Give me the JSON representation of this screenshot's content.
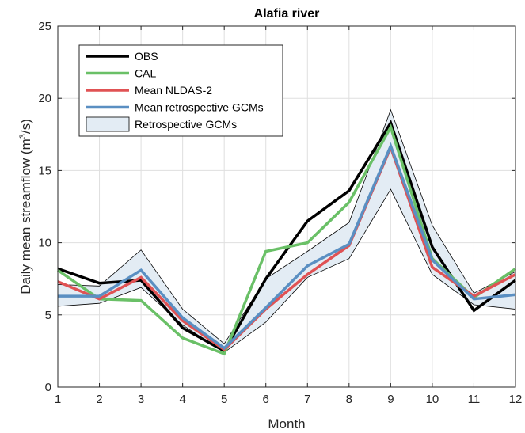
{
  "chart_data": {
    "type": "line",
    "title": "Alafia river",
    "xlabel": "Month",
    "ylabel_main": "Daily mean streamflow (m",
    "ylabel_sup": "3",
    "ylabel_end": "/s)",
    "xlim": [
      1,
      12
    ],
    "ylim": [
      0,
      25
    ],
    "x": [
      1,
      2,
      3,
      4,
      5,
      6,
      7,
      8,
      9,
      10,
      11,
      12
    ],
    "x_ticks": [
      "1",
      "2",
      "3",
      "4",
      "5",
      "6",
      "7",
      "8",
      "9",
      "10",
      "11",
      "12"
    ],
    "y_ticks": [
      0,
      5,
      10,
      15,
      20,
      25
    ],
    "y_tick_labels": [
      "0",
      "5",
      "10",
      "15",
      "20",
      "25"
    ],
    "grid": true,
    "legend_position": "top-left",
    "band": {
      "name": "Retrospective GCMs",
      "color": "#e3ecf4",
      "edge_color": "#000000",
      "lower": [
        5.6,
        5.8,
        6.9,
        4.3,
        2.4,
        4.5,
        7.6,
        8.9,
        13.7,
        7.8,
        5.7,
        5.4
      ],
      "upper": [
        7.1,
        7.0,
        9.5,
        5.4,
        3.0,
        7.5,
        9.4,
        11.4,
        19.2,
        11.2,
        6.5,
        8.0
      ]
    },
    "series": [
      {
        "name": "OBS",
        "color": "#000000",
        "width": 3.5,
        "values": [
          8.2,
          7.2,
          7.4,
          4.1,
          2.5,
          7.5,
          11.5,
          13.6,
          18.3,
          9.7,
          5.3,
          7.4
        ]
      },
      {
        "name": "CAL",
        "color": "#6ac067",
        "width": 3.5,
        "values": [
          8.1,
          6.1,
          6.0,
          3.4,
          2.3,
          9.4,
          10.0,
          12.8,
          18.0,
          8.9,
          6.2,
          8.2
        ]
      },
      {
        "name": "Mean NLDAS-2",
        "color": "#e05254",
        "width": 3.5,
        "values": [
          7.3,
          6.1,
          7.6,
          4.6,
          2.6,
          5.4,
          7.8,
          9.8,
          16.6,
          8.3,
          6.3,
          7.8
        ]
      },
      {
        "name": "Mean retrospective GCMs",
        "color": "#5a8fc2",
        "width": 3.5,
        "values": [
          6.3,
          6.3,
          8.1,
          4.8,
          2.7,
          5.5,
          8.4,
          9.9,
          16.7,
          8.8,
          6.1,
          6.4
        ]
      }
    ],
    "legend_order": [
      "OBS",
      "CAL",
      "Mean NLDAS-2",
      "Mean retrospective GCMs",
      "Retrospective GCMs"
    ]
  }
}
